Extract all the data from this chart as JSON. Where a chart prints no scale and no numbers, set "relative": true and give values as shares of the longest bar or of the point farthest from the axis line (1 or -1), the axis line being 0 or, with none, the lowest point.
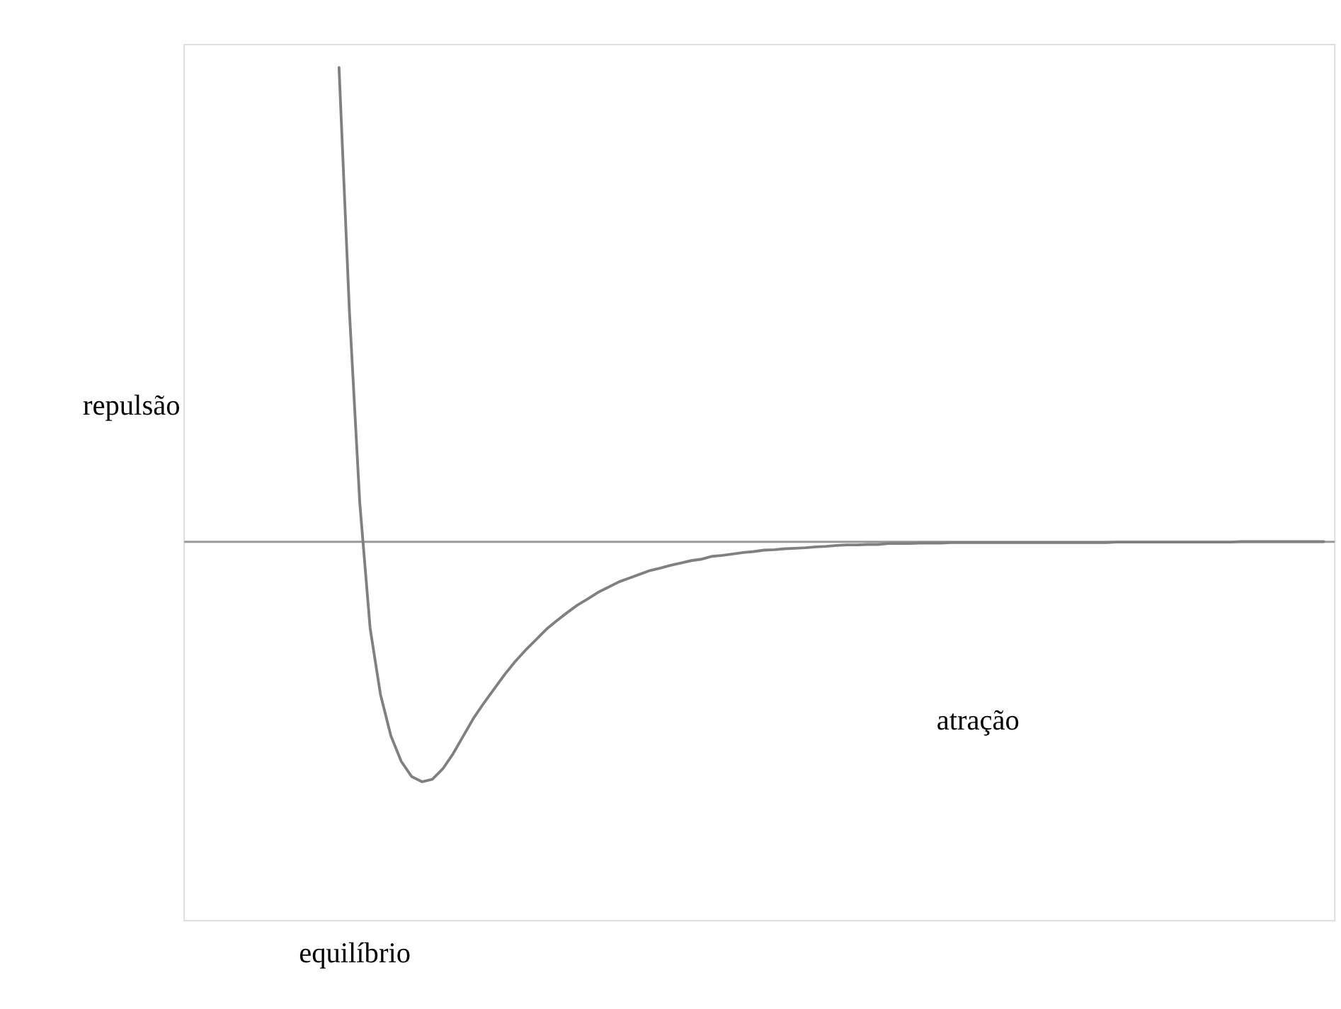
{
  "chart_data": {
    "type": "line",
    "relative": true,
    "categories": [
      null,
      null,
      null,
      null,
      null,
      null,
      null,
      null,
      null,
      null,
      null,
      null,
      null,
      null,
      null,
      null,
      null,
      null,
      null,
      null,
      null,
      null,
      null,
      null,
      null,
      null,
      null,
      null,
      null,
      null,
      null,
      null,
      null,
      null,
      null,
      null,
      null,
      null,
      null,
      null,
      null,
      null,
      null,
      null,
      null,
      null,
      null,
      null,
      null,
      null,
      null,
      null,
      null,
      null,
      null,
      null,
      null,
      null,
      null,
      null,
      null,
      null,
      null,
      null,
      null,
      null,
      null,
      null,
      null,
      null,
      null,
      null,
      null,
      null,
      null,
      null,
      null,
      null,
      null,
      null,
      null,
      null,
      null,
      null,
      null,
      null,
      null,
      null,
      null,
      null,
      null,
      null,
      null,
      null,
      null,
      null
    ],
    "series": [
      {
        "color": "#808080",
        "values": [
          1.0,
          0.486,
          0.081,
          -0.184,
          -0.324,
          -0.411,
          -0.465,
          -0.497,
          -0.508,
          -0.503,
          -0.481,
          -0.449,
          -0.411,
          -0.373,
          -0.341,
          -0.311,
          -0.281,
          -0.254,
          -0.23,
          -0.208,
          -0.186,
          -0.168,
          -0.151,
          -0.135,
          -0.122,
          -0.108,
          -0.097,
          -0.086,
          -0.078,
          -0.07,
          -0.062,
          -0.057,
          -0.051,
          -0.046,
          -0.041,
          -0.038,
          -0.032,
          -0.03,
          -0.027,
          -0.024,
          -0.022,
          -0.019,
          -0.018,
          -0.016,
          -0.015,
          -0.014,
          -0.012,
          -0.011,
          -0.009,
          -0.008,
          -0.008,
          -0.007,
          -0.007,
          -0.005,
          -0.005,
          -0.005,
          -0.004,
          -0.004,
          -0.004,
          -0.003,
          -0.003,
          -0.003,
          -0.003,
          -0.003,
          -0.003,
          -0.003,
          -0.003,
          -0.003,
          -0.003,
          -0.003,
          -0.003,
          -0.003,
          -0.003,
          -0.003,
          -0.003,
          -0.002,
          -0.002,
          -0.002,
          -0.002,
          -0.002,
          -0.002,
          -0.002,
          -0.002,
          -0.002,
          -0.002,
          -0.002,
          -0.002,
          -0.001,
          -0.001,
          -0.001,
          -0.001,
          -0.001,
          -0.001,
          -0.001,
          -0.001,
          -0.001
        ]
      }
    ],
    "annotations": [
      "repulsão",
      "equilíbrio",
      "atração"
    ],
    "marker": "none",
    "line_style": "solid",
    "grid": false,
    "tick_labels": false
  }
}
